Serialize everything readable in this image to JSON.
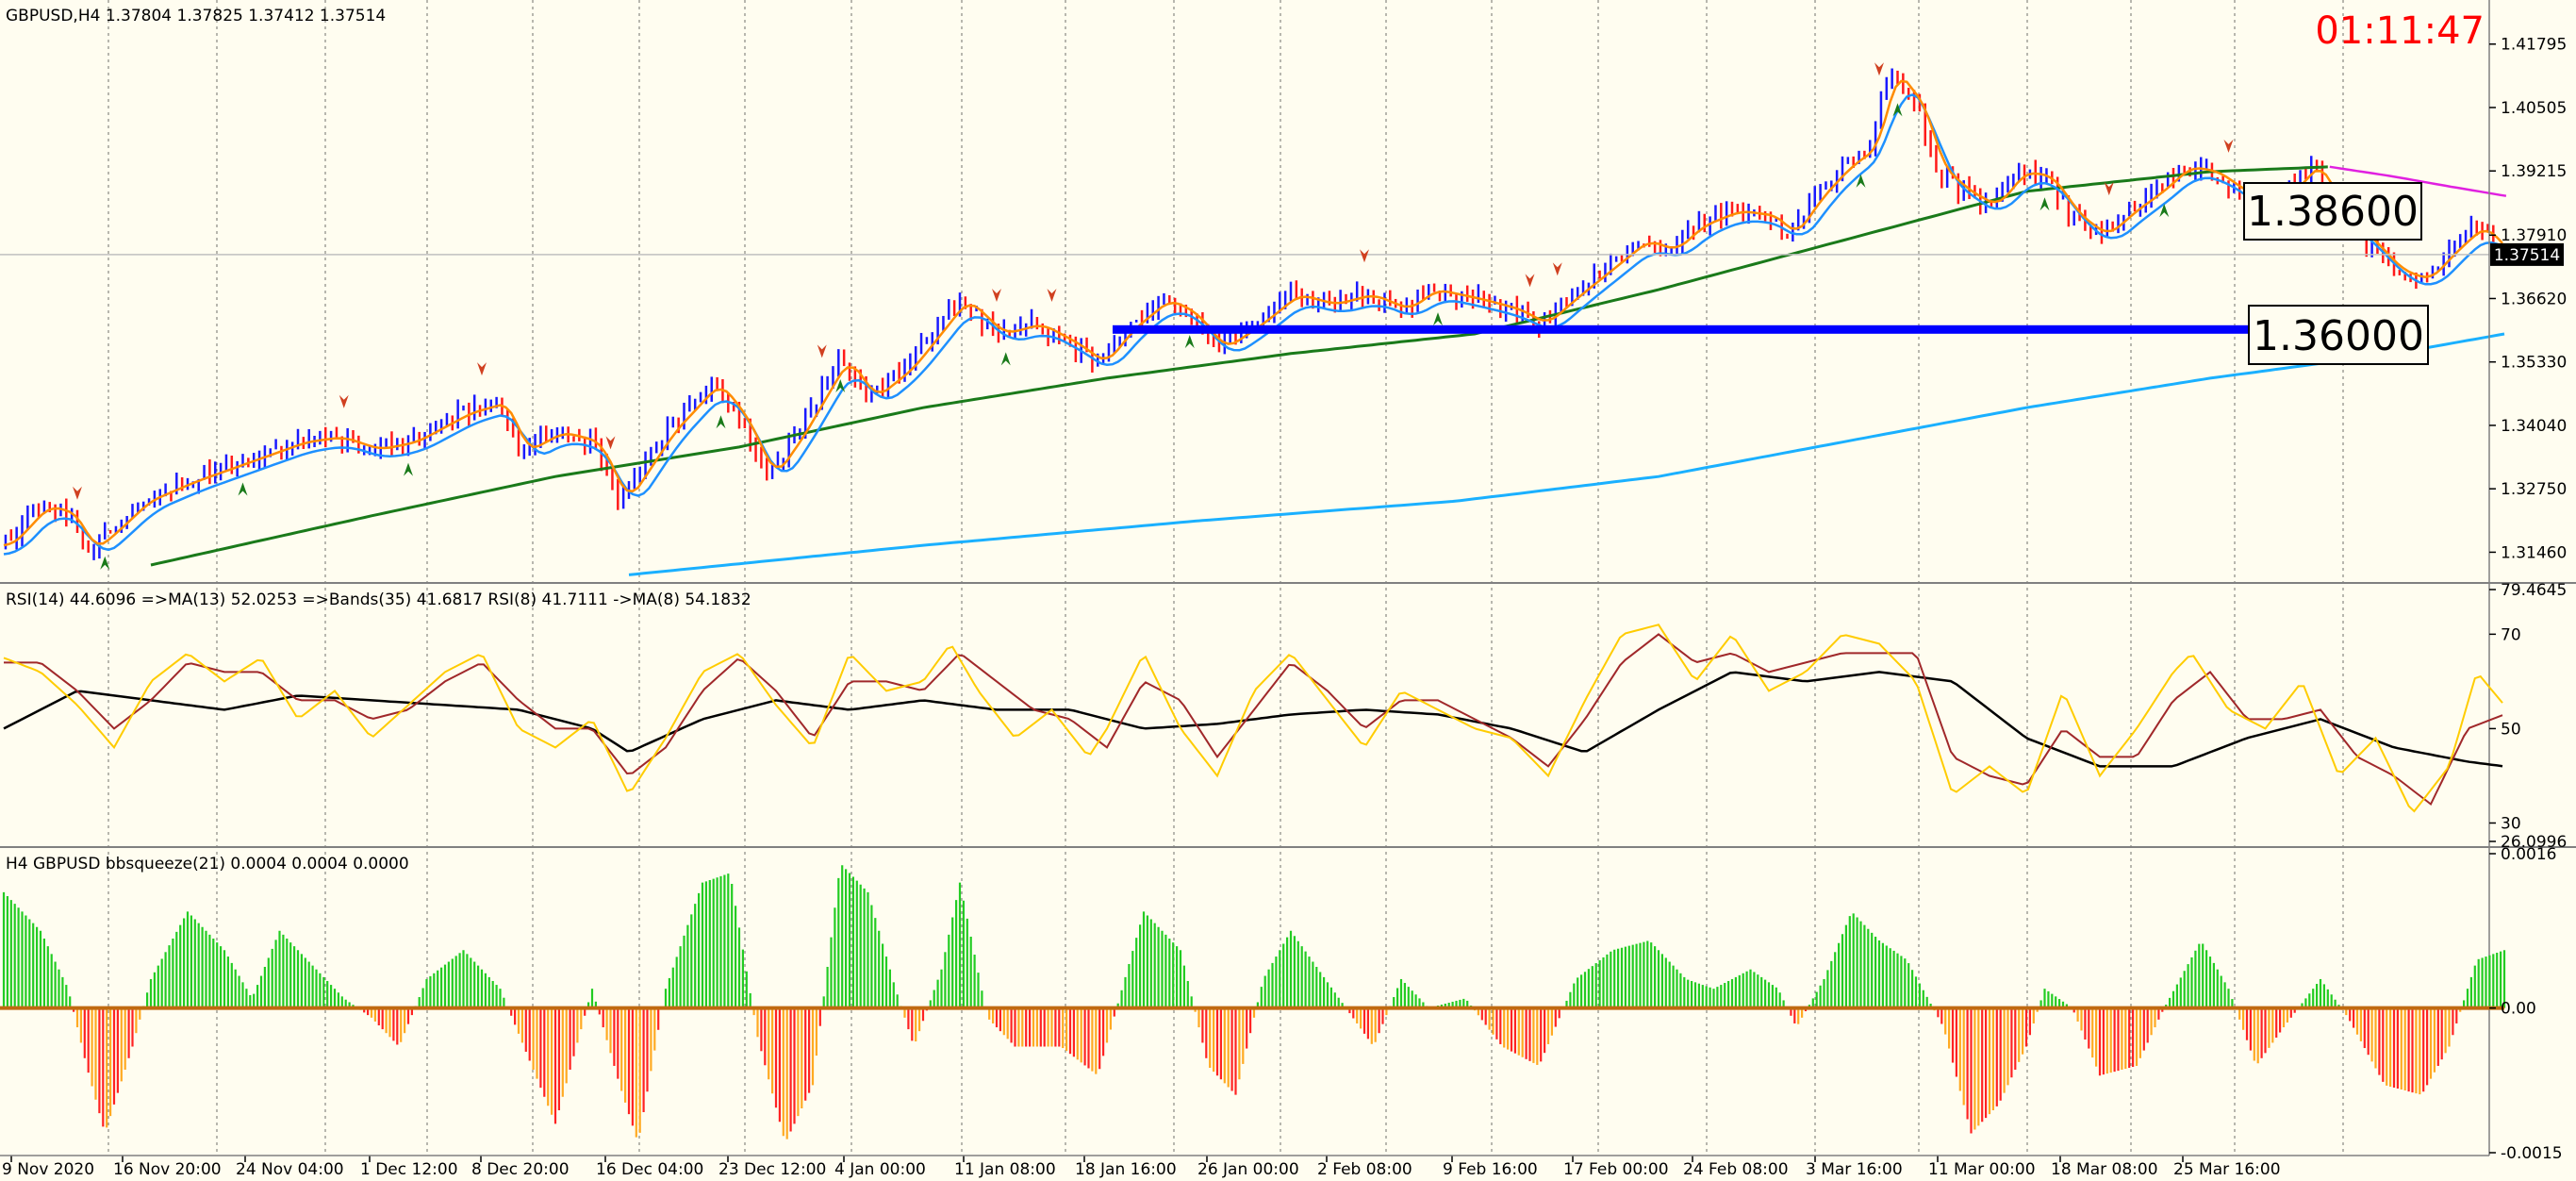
{
  "symbol_header": "GBPUSD,H4  1.37804 1.37825 1.37412 1.37514",
  "timer": "01:11:47",
  "colors": {
    "background": "#fffdf0",
    "bull_candle": "#1a1aff",
    "bear_candle": "#ff1a1a",
    "ma_fast": "#1e90ff",
    "ma_orange": "#ff8c00",
    "ma_green": "#1a7a1a",
    "ma_long": "#1ab0ff",
    "ma_magenta": "#e020e0",
    "support_line": "#0000ff",
    "rsi_yellow": "#ffcc00",
    "rsi_brown": "#a0282a",
    "rsi_black": "#000000",
    "squeeze_pos": "#22cc22",
    "squeeze_neg_red": "#ff2222",
    "squeeze_neg_orange": "#ffaa22",
    "timer": "#ff0000"
  },
  "price_panel": {
    "y_ticks": [
      "1.41795",
      "1.40505",
      "1.39215",
      "1.37910",
      "1.36620",
      "1.35330",
      "1.34040",
      "1.32750",
      "1.31460"
    ],
    "current_price": "1.37514",
    "level_labels": [
      "1.38600",
      "1.36000"
    ]
  },
  "rsi_panel": {
    "header": "RSI(14) 44.6096  =>MA(13) 52.0253  =>Bands(35) 41.6817  RSI(8) 41.7111  ->MA(8) 54.1832",
    "y_ticks": [
      "79.4645",
      "70",
      "50",
      "30",
      "26.0996"
    ]
  },
  "squeeze_panel": {
    "header": "H4 GBPUSD bbsqueeze(21) 0.0004 0.0004 0.0000",
    "y_ticks": [
      "0.0016",
      "0.00",
      "-0.0015"
    ]
  },
  "x_labels": [
    "9 Nov 2020",
    "16 Nov 20:00",
    "24 Nov 04:00",
    "1 Dec 12:00",
    "8 Dec 20:00",
    "16 Dec 04:00",
    "23 Dec 12:00",
    "4 Jan 00:00",
    "11 Jan 08:00",
    "18 Jan 16:00",
    "26 Jan 00:00",
    "2 Feb 08:00",
    "9 Feb 16:00",
    "17 Feb 00:00",
    "24 Feb 08:00",
    "3 Mar 16:00",
    "11 Mar 00:00",
    "18 Mar 08:00",
    "25 Mar 16:00"
  ],
  "chart_data": {
    "type": "line",
    "price_anchors": [
      [
        0,
        1.316
      ],
      [
        20,
        1.324
      ],
      [
        35,
        1.3225
      ],
      [
        45,
        1.315
      ],
      [
        55,
        1.318
      ],
      [
        75,
        1.325
      ],
      [
        100,
        1.329
      ],
      [
        130,
        1.333
      ],
      [
        160,
        1.337
      ],
      [
        180,
        1.338
      ],
      [
        200,
        1.3355
      ],
      [
        220,
        1.337
      ],
      [
        250,
        1.343
      ],
      [
        270,
        1.345
      ],
      [
        280,
        1.335
      ],
      [
        300,
        1.339
      ],
      [
        320,
        1.337
      ],
      [
        335,
        1.325
      ],
      [
        345,
        1.3305
      ],
      [
        360,
        1.339
      ],
      [
        385,
        1.349
      ],
      [
        400,
        1.342
      ],
      [
        415,
        1.33
      ],
      [
        430,
        1.338
      ],
      [
        455,
        1.354
      ],
      [
        470,
        1.346
      ],
      [
        490,
        1.352
      ],
      [
        520,
        1.366
      ],
      [
        540,
        1.359
      ],
      [
        560,
        1.361
      ],
      [
        580,
        1.357
      ],
      [
        595,
        1.353
      ],
      [
        610,
        1.36
      ],
      [
        630,
        1.366
      ],
      [
        645,
        1.363
      ],
      [
        660,
        1.356
      ],
      [
        680,
        1.361
      ],
      [
        700,
        1.367
      ],
      [
        720,
        1.365
      ],
      [
        740,
        1.367
      ],
      [
        760,
        1.364
      ],
      [
        775,
        1.368
      ],
      [
        800,
        1.366
      ],
      [
        820,
        1.364
      ],
      [
        835,
        1.361
      ],
      [
        850,
        1.366
      ],
      [
        870,
        1.372
      ],
      [
        890,
        1.378
      ],
      [
        905,
        1.376
      ],
      [
        920,
        1.381
      ],
      [
        940,
        1.384
      ],
      [
        960,
        1.383
      ],
      [
        970,
        1.379
      ],
      [
        985,
        1.387
      ],
      [
        1000,
        1.393
      ],
      [
        1015,
        1.397
      ],
      [
        1025,
        1.413
      ],
      [
        1032,
        1.409
      ],
      [
        1040,
        1.406
      ],
      [
        1050,
        1.393
      ],
      [
        1065,
        1.388
      ],
      [
        1080,
        1.385
      ],
      [
        1095,
        1.392
      ],
      [
        1110,
        1.391
      ],
      [
        1125,
        1.383
      ],
      [
        1140,
        1.379
      ],
      [
        1155,
        1.384
      ],
      [
        1170,
        1.388
      ],
      [
        1185,
        1.393
      ],
      [
        1200,
        1.392
      ],
      [
        1215,
        1.388
      ],
      [
        1230,
        1.386
      ],
      [
        1245,
        1.389
      ],
      [
        1255,
        1.394
      ],
      [
        1270,
        1.383
      ],
      [
        1285,
        1.378
      ],
      [
        1300,
        1.372
      ],
      [
        1315,
        1.37
      ],
      [
        1330,
        1.376
      ],
      [
        1345,
        1.381
      ],
      [
        1360,
        1.3751
      ]
    ],
    "ma_green_anchors": [
      [
        80,
        1.312
      ],
      [
        200,
        1.322
      ],
      [
        300,
        1.33
      ],
      [
        400,
        1.336
      ],
      [
        500,
        1.344
      ],
      [
        600,
        1.35
      ],
      [
        700,
        1.355
      ],
      [
        800,
        1.359
      ],
      [
        900,
        1.368
      ],
      [
        1000,
        1.378
      ],
      [
        1100,
        1.388
      ],
      [
        1200,
        1.392
      ],
      [
        1265,
        1.393
      ]
    ],
    "ma_long_anchors": [
      [
        340,
        1.31
      ],
      [
        500,
        1.316
      ],
      [
        650,
        1.321
      ],
      [
        790,
        1.325
      ],
      [
        900,
        1.33
      ],
      [
        1000,
        1.337
      ],
      [
        1100,
        1.344
      ],
      [
        1200,
        1.35
      ],
      [
        1300,
        1.355
      ],
      [
        1360,
        1.359
      ]
    ],
    "ma_magenta_anchors": [
      [
        1265,
        1.393
      ],
      [
        1300,
        1.391
      ],
      [
        1330,
        1.389
      ],
      [
        1362,
        1.387
      ]
    ],
    "support_level": 1.36,
    "resistance_level": 1.386,
    "price_range": [
      1.3095,
      1.425
    ],
    "rsi_range": [
      26.0996,
      79.4645
    ],
    "rsi_yellow_anchors": [
      [
        0,
        65
      ],
      [
        20,
        62
      ],
      [
        40,
        55
      ],
      [
        60,
        46
      ],
      [
        80,
        60
      ],
      [
        100,
        66
      ],
      [
        120,
        60
      ],
      [
        140,
        65
      ],
      [
        160,
        52
      ],
      [
        180,
        58
      ],
      [
        200,
        48
      ],
      [
        220,
        55
      ],
      [
        240,
        62
      ],
      [
        260,
        66
      ],
      [
        280,
        50
      ],
      [
        300,
        46
      ],
      [
        320,
        52
      ],
      [
        340,
        36
      ],
      [
        360,
        48
      ],
      [
        380,
        62
      ],
      [
        400,
        66
      ],
      [
        420,
        55
      ],
      [
        440,
        46
      ],
      [
        460,
        66
      ],
      [
        480,
        58
      ],
      [
        500,
        60
      ],
      [
        515,
        68
      ],
      [
        530,
        58
      ],
      [
        550,
        48
      ],
      [
        570,
        54
      ],
      [
        590,
        44
      ],
      [
        600,
        50
      ],
      [
        620,
        66
      ],
      [
        640,
        50
      ],
      [
        660,
        40
      ],
      [
        680,
        58
      ],
      [
        700,
        66
      ],
      [
        720,
        56
      ],
      [
        740,
        46
      ],
      [
        760,
        58
      ],
      [
        780,
        54
      ],
      [
        800,
        50
      ],
      [
        820,
        48
      ],
      [
        840,
        40
      ],
      [
        860,
        56
      ],
      [
        880,
        70
      ],
      [
        900,
        72
      ],
      [
        920,
        60
      ],
      [
        940,
        70
      ],
      [
        960,
        58
      ],
      [
        980,
        62
      ],
      [
        1000,
        70
      ],
      [
        1020,
        68
      ],
      [
        1040,
        60
      ],
      [
        1060,
        36
      ],
      [
        1080,
        42
      ],
      [
        1100,
        36
      ],
      [
        1120,
        58
      ],
      [
        1140,
        40
      ],
      [
        1160,
        50
      ],
      [
        1180,
        62
      ],
      [
        1190,
        66
      ],
      [
        1210,
        54
      ],
      [
        1230,
        50
      ],
      [
        1250,
        60
      ],
      [
        1270,
        40
      ],
      [
        1290,
        48
      ],
      [
        1310,
        32
      ],
      [
        1330,
        42
      ],
      [
        1345,
        62
      ],
      [
        1360,
        55
      ]
    ],
    "rsi_brown_anchors": [
      [
        0,
        64
      ],
      [
        20,
        64
      ],
      [
        40,
        58
      ],
      [
        60,
        50
      ],
      [
        80,
        56
      ],
      [
        100,
        64
      ],
      [
        120,
        62
      ],
      [
        140,
        62
      ],
      [
        160,
        56
      ],
      [
        180,
        56
      ],
      [
        200,
        52
      ],
      [
        220,
        54
      ],
      [
        240,
        60
      ],
      [
        260,
        64
      ],
      [
        280,
        56
      ],
      [
        300,
        50
      ],
      [
        320,
        50
      ],
      [
        340,
        40
      ],
      [
        360,
        46
      ],
      [
        380,
        58
      ],
      [
        400,
        65
      ],
      [
        420,
        58
      ],
      [
        440,
        48
      ],
      [
        460,
        60
      ],
      [
        480,
        60
      ],
      [
        500,
        58
      ],
      [
        520,
        66
      ],
      [
        540,
        60
      ],
      [
        560,
        54
      ],
      [
        580,
        52
      ],
      [
        600,
        46
      ],
      [
        620,
        60
      ],
      [
        640,
        56
      ],
      [
        660,
        44
      ],
      [
        680,
        54
      ],
      [
        700,
        64
      ],
      [
        720,
        58
      ],
      [
        740,
        50
      ],
      [
        760,
        56
      ],
      [
        780,
        56
      ],
      [
        800,
        52
      ],
      [
        820,
        48
      ],
      [
        840,
        42
      ],
      [
        860,
        52
      ],
      [
        880,
        64
      ],
      [
        900,
        70
      ],
      [
        920,
        64
      ],
      [
        940,
        66
      ],
      [
        960,
        62
      ],
      [
        980,
        64
      ],
      [
        1000,
        66
      ],
      [
        1020,
        66
      ],
      [
        1040,
        66
      ],
      [
        1060,
        44
      ],
      [
        1080,
        40
      ],
      [
        1100,
        38
      ],
      [
        1120,
        50
      ],
      [
        1140,
        44
      ],
      [
        1160,
        44
      ],
      [
        1180,
        56
      ],
      [
        1200,
        62
      ],
      [
        1220,
        52
      ],
      [
        1240,
        52
      ],
      [
        1260,
        54
      ],
      [
        1280,
        44
      ],
      [
        1300,
        40
      ],
      [
        1320,
        34
      ],
      [
        1340,
        50
      ],
      [
        1360,
        53
      ]
    ],
    "rsi_black_anchors": [
      [
        0,
        50
      ],
      [
        40,
        58
      ],
      [
        80,
        56
      ],
      [
        120,
        54
      ],
      [
        160,
        57
      ],
      [
        200,
        56
      ],
      [
        240,
        55
      ],
      [
        280,
        54
      ],
      [
        320,
        50
      ],
      [
        340,
        45
      ],
      [
        380,
        52
      ],
      [
        420,
        56
      ],
      [
        460,
        54
      ],
      [
        500,
        56
      ],
      [
        540,
        54
      ],
      [
        580,
        54
      ],
      [
        620,
        50
      ],
      [
        660,
        51
      ],
      [
        700,
        53
      ],
      [
        740,
        54
      ],
      [
        780,
        53
      ],
      [
        820,
        50
      ],
      [
        860,
        45
      ],
      [
        900,
        54
      ],
      [
        940,
        62
      ],
      [
        980,
        60
      ],
      [
        1020,
        62
      ],
      [
        1060,
        60
      ],
      [
        1100,
        48
      ],
      [
        1140,
        42
      ],
      [
        1180,
        42
      ],
      [
        1220,
        48
      ],
      [
        1260,
        52
      ],
      [
        1300,
        46
      ],
      [
        1340,
        43
      ],
      [
        1360,
        42
      ]
    ],
    "squeeze_range": [
      -0.0015,
      0.0016
    ],
    "squeeze_anchors": [
      [
        0,
        0.0012
      ],
      [
        20,
        0.0008
      ],
      [
        35,
        0.0002
      ],
      [
        45,
        -0.0006
      ],
      [
        55,
        -0.0013
      ],
      [
        70,
        -0.0004
      ],
      [
        80,
        0.0003
      ],
      [
        100,
        0.001
      ],
      [
        120,
        0.0006
      ],
      [
        135,
        0.0001
      ],
      [
        150,
        0.0008
      ],
      [
        170,
        0.0004
      ],
      [
        185,
        0.0001
      ],
      [
        200,
        -0.0001
      ],
      [
        215,
        -0.0004
      ],
      [
        230,
        0.0003
      ],
      [
        250,
        0.0006
      ],
      [
        270,
        0.0002
      ],
      [
        285,
        -0.0005
      ],
      [
        300,
        -0.0012
      ],
      [
        320,
        0.0002
      ],
      [
        335,
        -0.0008
      ],
      [
        345,
        -0.0014
      ],
      [
        360,
        0.0002
      ],
      [
        380,
        0.0013
      ],
      [
        395,
        0.0014
      ],
      [
        410,
        -0.0003
      ],
      [
        425,
        -0.0014
      ],
      [
        440,
        -0.0008
      ],
      [
        455,
        0.0015
      ],
      [
        470,
        0.0012
      ],
      [
        485,
        0.0002
      ],
      [
        495,
        -0.0004
      ],
      [
        510,
        0.0004
      ],
      [
        520,
        0.0013
      ],
      [
        535,
        -0.0001
      ],
      [
        550,
        -0.0004
      ],
      [
        575,
        -0.0004
      ],
      [
        595,
        -0.0007
      ],
      [
        620,
        0.001
      ],
      [
        640,
        0.0006
      ],
      [
        655,
        -0.0006
      ],
      [
        670,
        -0.0009
      ],
      [
        685,
        0.0003
      ],
      [
        700,
        0.0008
      ],
      [
        715,
        0.0004
      ],
      [
        730,
        0.0
      ],
      [
        745,
        -0.0004
      ],
      [
        760,
        0.0003
      ],
      [
        775,
        0.0
      ],
      [
        795,
        0.0001
      ],
      [
        815,
        -0.0004
      ],
      [
        835,
        -0.0006
      ],
      [
        855,
        0.0003
      ],
      [
        875,
        0.0006
      ],
      [
        895,
        0.0007
      ],
      [
        915,
        0.0003
      ],
      [
        930,
        0.0002
      ],
      [
        950,
        0.0004
      ],
      [
        965,
        0.0002
      ],
      [
        975,
        -0.0002
      ],
      [
        990,
        0.0003
      ],
      [
        1005,
        0.001
      ],
      [
        1020,
        0.0007
      ],
      [
        1035,
        0.0005
      ],
      [
        1055,
        -0.0002
      ],
      [
        1070,
        -0.0013
      ],
      [
        1085,
        -0.001
      ],
      [
        1100,
        -0.0004
      ],
      [
        1110,
        0.0002
      ],
      [
        1125,
        0.0
      ],
      [
        1140,
        -0.0007
      ],
      [
        1160,
        -0.0006
      ],
      [
        1175,
        0.0
      ],
      [
        1195,
        0.0007
      ],
      [
        1210,
        0.0002
      ],
      [
        1225,
        -0.0006
      ],
      [
        1240,
        -0.0002
      ],
      [
        1260,
        0.0003
      ],
      [
        1275,
        -0.0001
      ],
      [
        1295,
        -0.0008
      ],
      [
        1315,
        -0.0009
      ],
      [
        1330,
        -0.0004
      ],
      [
        1345,
        0.0005
      ],
      [
        1360,
        0.0006
      ]
    ]
  }
}
